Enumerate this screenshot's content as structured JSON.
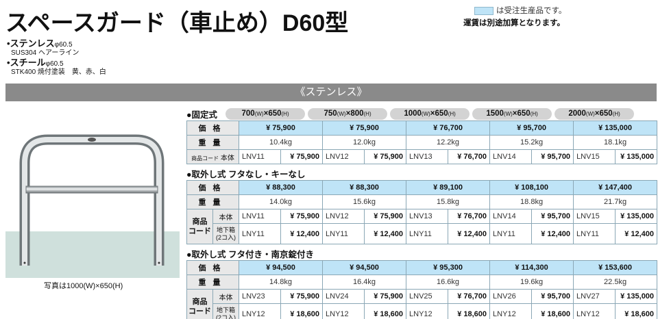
{
  "title": "スペースガード（車止め）D60型",
  "legend": {
    "swatch_text": "は受注生産品です。",
    "note": "運賃は別途加算となります。",
    "colors": {
      "made_to_order": "#bfe4f7",
      "bar": "#8a8a8a"
    }
  },
  "materials": [
    {
      "name": "ステンレス",
      "dim": "φ60.5",
      "spec": "SUS304 ヘアーライン"
    },
    {
      "name": "スチール",
      "dim": "φ60.5",
      "spec": "STK400 焼付塗装　黄、赤、白"
    }
  ],
  "section": "《ステンレス》",
  "photo_caption": "写真は1000(W)×650(H)",
  "sizes": [
    "700",
    "750",
    "1000",
    "1500",
    "2000"
  ],
  "size_heights": [
    "650",
    "800",
    "650",
    "650",
    "650"
  ],
  "labels": {
    "price": "価格",
    "weight": "重量",
    "code": "商品コード",
    "code_2": "商品",
    "code_3": "コード",
    "body": "本体",
    "underground": "地下箱",
    "underground_qty": "(2コ入)",
    "w": "(W)",
    "h": "(H)",
    "x": "×"
  },
  "tables": [
    {
      "title": "●固定式",
      "prices": [
        "¥ 75,900",
        "¥ 75,900",
        "¥ 76,700",
        "¥ 95,700",
        "¥ 135,000"
      ],
      "weights": [
        "10.4kg",
        "12.0kg",
        "12.2kg",
        "15.2kg",
        "18.1kg"
      ],
      "body_codes": [
        "LNV11",
        "LNV12",
        "LNV13",
        "LNV14",
        "LNV15"
      ],
      "body_prices": [
        "¥ 75,900",
        "¥ 75,900",
        "¥ 76,700",
        "¥ 95,700",
        "¥ 135,000"
      ]
    },
    {
      "title": "●取外し式 フタなし・キーなし",
      "prices": [
        "¥ 88,300",
        "¥ 88,300",
        "¥ 89,100",
        "¥ 108,100",
        "¥ 147,400"
      ],
      "weights": [
        "14.0kg",
        "15.6kg",
        "15.8kg",
        "18.8kg",
        "21.7kg"
      ],
      "body_codes": [
        "LNV11",
        "LNV12",
        "LNV13",
        "LNV14",
        "LNV15"
      ],
      "body_prices": [
        "¥ 75,900",
        "¥ 75,900",
        "¥ 76,700",
        "¥ 95,700",
        "¥ 135,000"
      ],
      "box_codes": [
        "LNY11",
        "LNY11",
        "LNY11",
        "LNY11",
        "LNY11"
      ],
      "box_prices": [
        "¥ 12,400",
        "¥ 12,400",
        "¥ 12,400",
        "¥ 12,400",
        "¥ 12,400"
      ]
    },
    {
      "title": "●取外し式 フタ付き・南京錠付き",
      "prices": [
        "¥ 94,500",
        "¥ 94,500",
        "¥ 95,300",
        "¥ 114,300",
        "¥ 153,600"
      ],
      "weights": [
        "14.8kg",
        "16.4kg",
        "16.6kg",
        "19.6kg",
        "22.5kg"
      ],
      "body_codes": [
        "LNV23",
        "LNV24",
        "LNV25",
        "LNV26",
        "LNV27"
      ],
      "body_prices": [
        "¥ 75,900",
        "¥ 75,900",
        "¥ 76,700",
        "¥ 95,700",
        "¥ 135,000"
      ],
      "box_codes": [
        "LNY12",
        "LNY12",
        "LNY12",
        "LNY12",
        "LNY12"
      ],
      "box_prices": [
        "¥ 18,600",
        "¥ 18,600",
        "¥ 18,600",
        "¥ 18,600",
        "¥ 18,600"
      ]
    }
  ]
}
